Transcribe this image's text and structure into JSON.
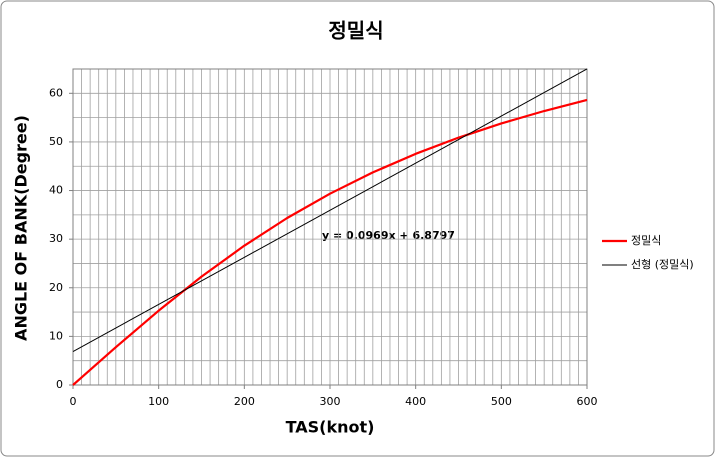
{
  "chart_data": {
    "type": "line",
    "title": "정밀식",
    "xlabel": "TAS(knot)",
    "ylabel": "ANGLE OF BANK(Degree)",
    "annotation": "y = 0.0969x + 6.8797",
    "x": [
      0,
      50,
      100,
      150,
      200,
      250,
      300,
      350,
      400,
      450,
      500,
      550,
      600
    ],
    "series": [
      {
        "name": "정밀식",
        "color": "#ff0000",
        "width": 2.2,
        "values": [
          0,
          7.78,
          15.29,
          22.29,
          28.66,
          34.35,
          39.35,
          43.73,
          47.55,
          50.88,
          53.8,
          56.36,
          58.63
        ]
      },
      {
        "name": "선형 (정밀식)",
        "color": "#000000",
        "width": 1,
        "x": [
          0,
          600
        ],
        "values": [
          6.88,
          65.01
        ]
      }
    ],
    "xlim": [
      0,
      600
    ],
    "xticks": [
      0,
      100,
      200,
      300,
      400,
      500,
      600
    ],
    "ylim": [
      0,
      65
    ],
    "yticks": [
      0,
      10,
      20,
      30,
      40,
      50,
      60
    ],
    "grid": true,
    "grid_xstep": 10,
    "grid_ystep": 5,
    "legend": "right"
  }
}
